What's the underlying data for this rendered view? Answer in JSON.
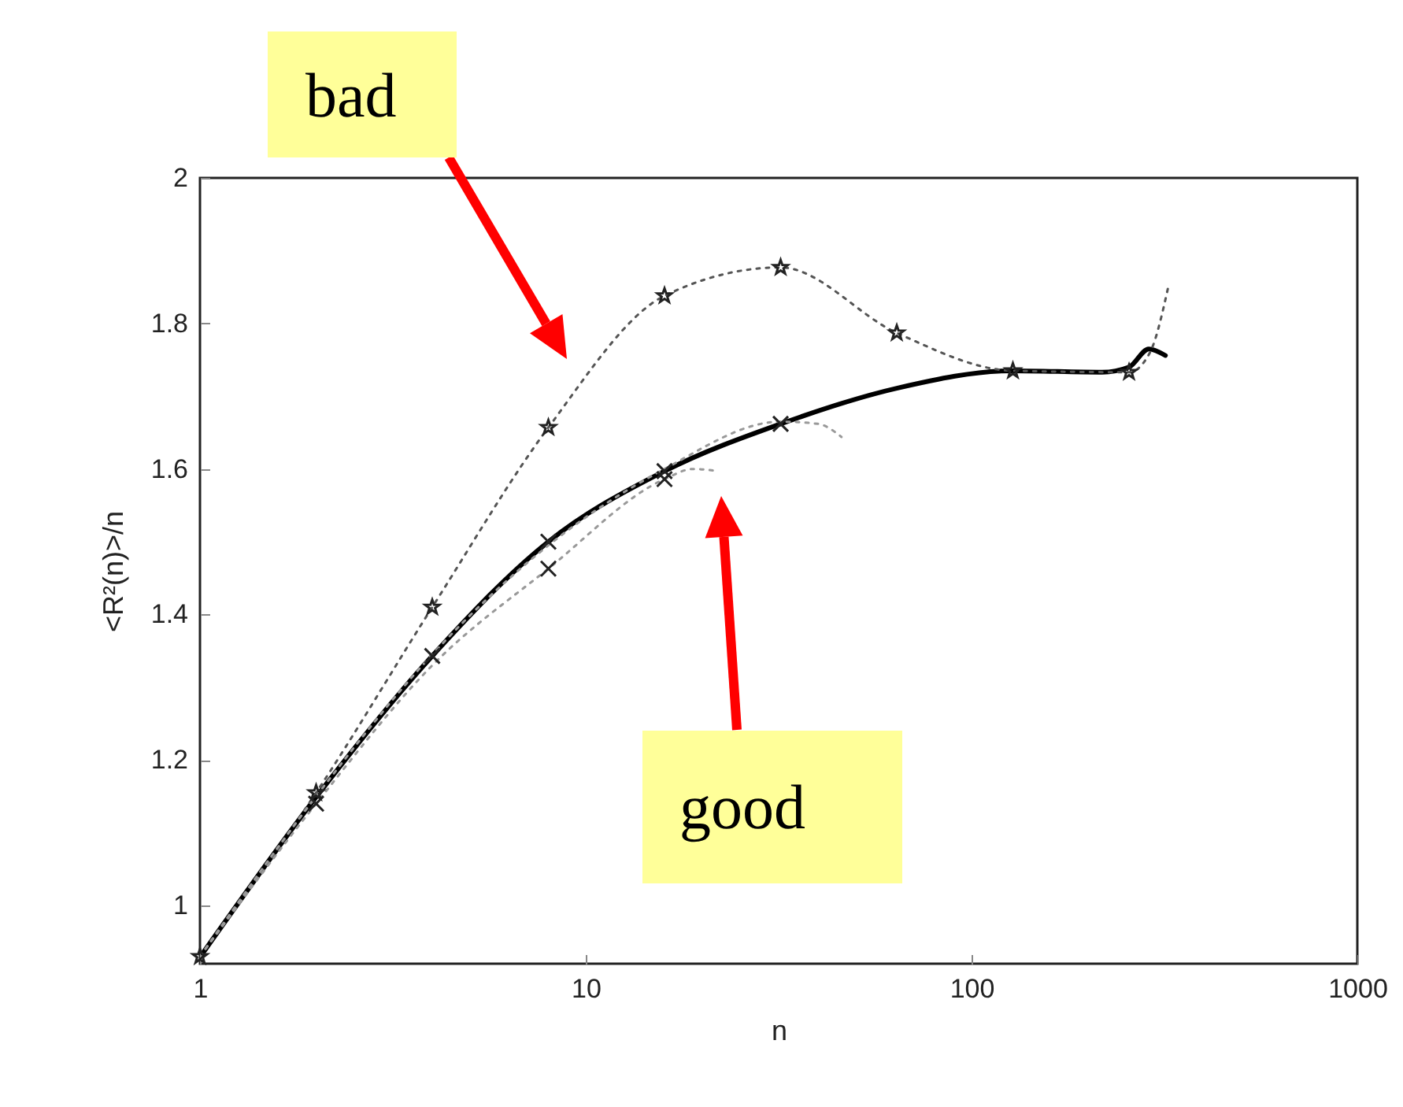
{
  "chart_data": {
    "type": "line",
    "xlabel": "n",
    "ylabel": "<R²(n)>/n",
    "log": "x",
    "xlim": [
      1,
      1000
    ],
    "xticks": [
      1,
      10,
      100,
      1000
    ],
    "ylim": [
      0.92,
      2
    ],
    "yticks": [
      1,
      1.2,
      1.4,
      1.6,
      1.8,
      2
    ],
    "grid": false,
    "series": [
      {
        "color": "#000000",
        "line_style": "solid",
        "marker": "none",
        "x": [
          1,
          2,
          4,
          8,
          16,
          32,
          64,
          128,
          218,
          256,
          288,
          318
        ],
        "values": [
          0.929,
          1.149,
          1.343,
          1.5,
          1.597,
          1.662,
          1.711,
          1.735,
          1.733,
          1.74,
          1.765,
          1.756
        ]
      },
      {
        "color": "#555555",
        "line_style": "dotted",
        "marker": "none",
        "x": [
          1,
          2,
          4,
          8,
          16,
          32,
          64,
          128,
          256,
          290,
          325
        ],
        "values": [
          0.93,
          1.155,
          1.41,
          1.657,
          1.838,
          1.877,
          1.787,
          1.735,
          1.733,
          1.76,
          1.855
        ]
      },
      {
        "color": "#999999",
        "line_style": "dotted",
        "marker": "none",
        "x": [
          1,
          2,
          4,
          8,
          16,
          19,
          22
        ],
        "values": [
          0.93,
          1.14,
          1.33,
          1.463,
          1.586,
          1.6,
          1.597
        ]
      },
      {
        "color": "#999999",
        "line_style": "dotted",
        "marker": "none",
        "x": [
          1,
          2,
          4,
          8,
          16,
          32,
          40,
          46
        ],
        "values": [
          0.93,
          1.15,
          1.345,
          1.495,
          1.6,
          1.665,
          1.662,
          1.644
        ]
      },
      {
        "type": "scatter",
        "color": "#222222",
        "marker": "star",
        "x": [
          1,
          2,
          4,
          8,
          16,
          32,
          64,
          128,
          256
        ],
        "values": [
          0.93,
          1.155,
          1.41,
          1.657,
          1.838,
          1.877,
          1.787,
          1.735,
          1.733
        ]
      },
      {
        "type": "scatter",
        "color": "#222222",
        "marker": "cross",
        "x": [
          2,
          4,
          8,
          8,
          16,
          16,
          32
        ],
        "values": [
          1.14,
          1.343,
          1.463,
          1.5,
          1.586,
          1.597,
          1.662
        ]
      }
    ],
    "annotations": [
      "bad",
      "good"
    ]
  }
}
